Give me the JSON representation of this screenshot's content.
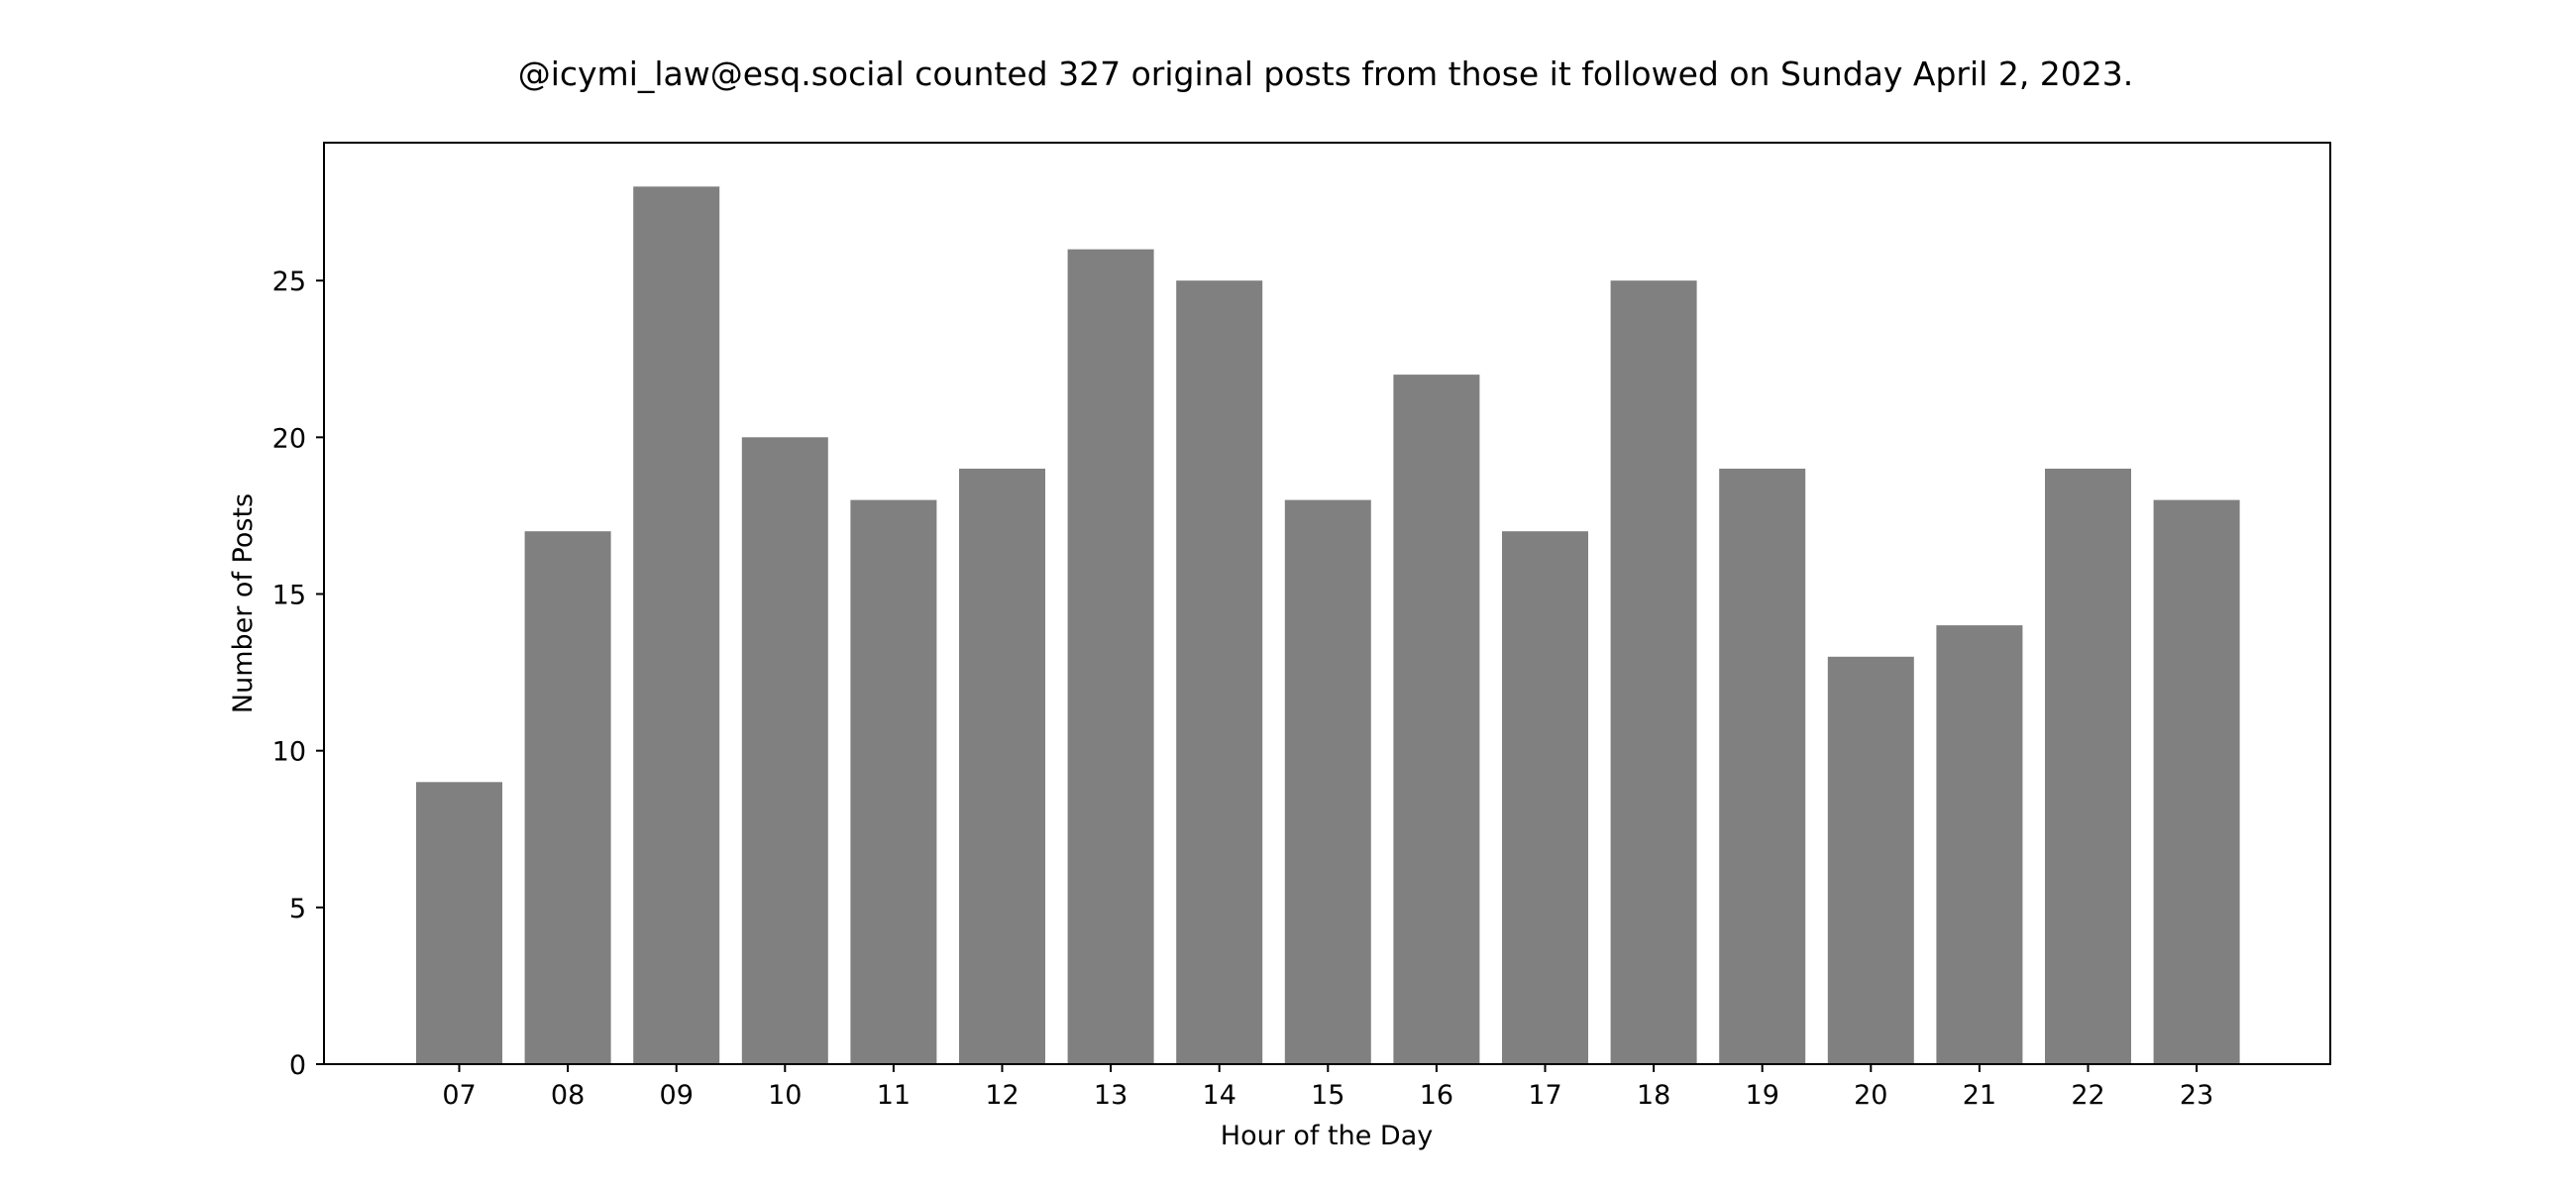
{
  "chart_data": {
    "type": "bar",
    "title": "@icymi_law@esq.social counted 327 original posts from those it followed on Sunday April 2, 2023.",
    "xlabel": "Hour of the Day",
    "ylabel": "Number of Posts",
    "categories": [
      "07",
      "08",
      "09",
      "10",
      "11",
      "12",
      "13",
      "14",
      "15",
      "16",
      "17",
      "18",
      "19",
      "20",
      "21",
      "22",
      "23"
    ],
    "values": [
      9,
      17,
      28,
      20,
      18,
      19,
      26,
      25,
      18,
      22,
      17,
      25,
      19,
      13,
      14,
      19,
      18
    ],
    "yticks": [
      0,
      5,
      10,
      15,
      20,
      25
    ],
    "ylim": [
      0,
      29.4
    ],
    "grid": false,
    "bar_color": "#808080"
  }
}
